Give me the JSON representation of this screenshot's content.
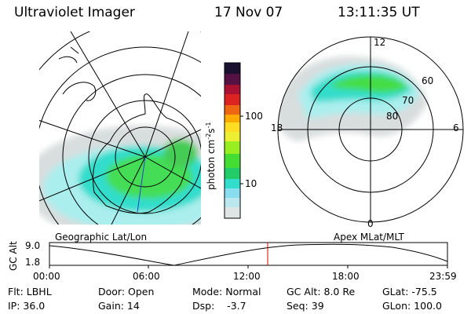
{
  "header": {
    "instrument": "Ultraviolet Imager",
    "date": "17 Nov 07",
    "time": "13:11:35 UT"
  },
  "colorbar": {
    "label": "photon cm",
    "label_sup1": "-2",
    "label_mid": "s",
    "label_sup2": "-1",
    "ticks": [
      "100",
      "10"
    ]
  },
  "polar_plot": {
    "labels_top": "12",
    "labels_bottom": "0",
    "labels_left": "18",
    "labels_right": "6",
    "lat_60": "60",
    "lat_70": "70",
    "lat_80": "80"
  },
  "altitude_panel": {
    "ylabel": "GC Alt",
    "ytick_top": "9.0",
    "ytick_bottom": "1.8",
    "left_title": "Geographic Lat/Lon",
    "right_title": "Apex MLat/MLT",
    "xticks": [
      "00:00",
      "06:00",
      "12:00",
      "18:00",
      "23:59"
    ]
  },
  "footer": {
    "rows": [
      [
        "Flt: LBHL",
        "Door: Open",
        "Mode: Normal",
        "GC Alt: 8.0 Re",
        "GLat: -75.5"
      ],
      [
        "IP: 36.0",
        "Gain: 14",
        "Dsp:    -3.7",
        "Seq: 39",
        "GLon: 100.0"
      ]
    ]
  },
  "colors": {
    "aurora_green": "#33dd33",
    "aurora_cyan": "#33ddcc",
    "aurora_light": "#aaeeee",
    "aurora_gray": "#d8dddd",
    "marker_red": "#dd0000",
    "track_blue": "#2244cc"
  }
}
